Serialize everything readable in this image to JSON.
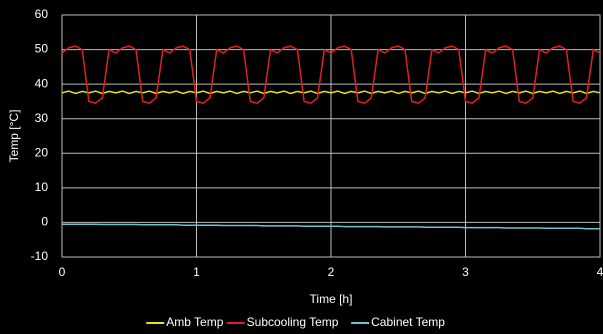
{
  "chart_data": {
    "type": "line",
    "x_label": "Time [h]",
    "y_label": "Temp [°C]",
    "x": [
      0,
      0.05,
      0.1,
      0.15,
      0.2,
      0.25,
      0.3,
      0.35,
      0.4,
      0.45,
      0.5,
      0.55,
      0.6,
      0.65,
      0.7,
      0.75,
      0.8,
      0.85,
      0.9,
      0.95,
      1,
      1.05,
      1.1,
      1.15,
      1.2,
      1.25,
      1.3,
      1.35,
      1.4,
      1.45,
      1.5,
      1.55,
      1.6,
      1.65,
      1.7,
      1.75,
      1.8,
      1.85,
      1.9,
      1.95,
      2,
      2.05,
      2.1,
      2.15,
      2.2,
      2.25,
      2.3,
      2.35,
      2.4,
      2.45,
      2.5,
      2.55,
      2.6,
      2.65,
      2.7,
      2.75,
      2.8,
      2.85,
      2.9,
      2.95,
      3,
      3.05,
      3.1,
      3.15,
      3.2,
      3.25,
      3.3,
      3.35,
      3.4,
      3.45,
      3.5,
      3.55,
      3.6,
      3.65,
      3.7,
      3.75,
      3.8,
      3.85,
      3.9,
      3.95,
      4
    ],
    "series": [
      {
        "name": "Amb Temp",
        "color": "#e8e020",
        "values": [
          37.5,
          38,
          37.3,
          37.9,
          37.5,
          38,
          37.3,
          37.9,
          37.5,
          38,
          37.3,
          37.9,
          37.5,
          38,
          37.3,
          37.9,
          37.5,
          38,
          37.3,
          37.9,
          37.5,
          38,
          37.3,
          37.9,
          37.5,
          38,
          37.3,
          37.9,
          37.5,
          38,
          37.3,
          37.9,
          37.5,
          38,
          37.3,
          37.9,
          37.5,
          38,
          37.3,
          37.9,
          37.5,
          38,
          37.3,
          37.9,
          37.5,
          38,
          37.3,
          37.9,
          37.5,
          38,
          37.3,
          37.9,
          37.5,
          38,
          37.3,
          37.9,
          37.5,
          38,
          37.3,
          37.9,
          37.5,
          38,
          37.3,
          37.9,
          37.5,
          38,
          37.3,
          37.9,
          37.5,
          38,
          37.3,
          37.9,
          37.5,
          38,
          37.3,
          37.9,
          37.5,
          38,
          37.3,
          37.9,
          37.5
        ]
      },
      {
        "name": "Subcooling Temp",
        "color": "#e02020",
        "values": [
          49,
          50.5,
          51,
          50,
          35,
          34.5,
          36,
          50,
          49,
          50.5,
          51,
          50,
          35,
          34.5,
          36,
          50,
          49,
          50.5,
          51,
          50,
          35,
          34.5,
          36,
          50,
          49,
          50.5,
          51,
          50,
          35,
          34.5,
          36,
          50,
          49,
          50.5,
          51,
          50,
          35,
          34.5,
          36,
          50,
          49,
          50.5,
          51,
          50,
          35,
          34.5,
          36,
          50,
          49,
          50.5,
          51,
          50,
          35,
          34.5,
          36,
          50,
          49,
          50.5,
          51,
          50,
          35,
          34.5,
          36,
          50,
          49,
          50.5,
          51,
          50,
          35,
          34.5,
          36,
          50,
          49,
          50.5,
          51,
          50,
          35,
          34.5,
          36,
          50,
          49
        ]
      },
      {
        "name": "Cabinet Temp",
        "color": "#6ac4d4",
        "values": [
          -0.5,
          -0.5,
          -0.5,
          -0.5,
          -0.5,
          -0.5,
          -0.6,
          -0.6,
          -0.6,
          -0.6,
          -0.6,
          -0.6,
          -0.7,
          -0.7,
          -0.7,
          -0.7,
          -0.7,
          -0.7,
          -0.8,
          -0.8,
          -0.8,
          -0.8,
          -0.8,
          -0.8,
          -0.9,
          -0.9,
          -0.9,
          -0.9,
          -0.9,
          -0.9,
          -1,
          -1,
          -1,
          -1,
          -1,
          -1,
          -1.1,
          -1.1,
          -1.1,
          -1.1,
          -1.1,
          -1.1,
          -1.2,
          -1.2,
          -1.2,
          -1.2,
          -1.2,
          -1.2,
          -1.3,
          -1.3,
          -1.3,
          -1.3,
          -1.3,
          -1.3,
          -1.4,
          -1.4,
          -1.4,
          -1.4,
          -1.4,
          -1.4,
          -1.5,
          -1.5,
          -1.5,
          -1.5,
          -1.5,
          -1.5,
          -1.6,
          -1.6,
          -1.6,
          -1.6,
          -1.6,
          -1.6,
          -1.7,
          -1.7,
          -1.7,
          -1.7,
          -1.7,
          -1.7,
          -1.8,
          -1.8,
          -1.8
        ]
      }
    ],
    "xlim": [
      0,
      4
    ],
    "xticks": [
      0,
      1,
      2,
      3,
      4
    ],
    "ylim": [
      -10,
      60
    ],
    "yticks": [
      -10,
      0,
      10,
      20,
      30,
      40,
      50,
      60
    ],
    "grid": true,
    "legend": "bottom"
  }
}
